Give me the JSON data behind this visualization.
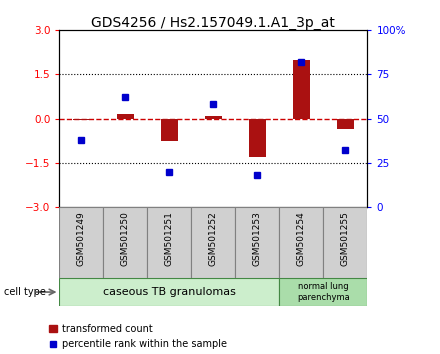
{
  "title": "GDS4256 / Hs2.157049.1.A1_3p_at",
  "samples": [
    "GSM501249",
    "GSM501250",
    "GSM501251",
    "GSM501252",
    "GSM501253",
    "GSM501254",
    "GSM501255"
  ],
  "transformed_count": [
    -0.05,
    0.15,
    -0.75,
    0.08,
    -1.3,
    2.0,
    -0.35
  ],
  "percentile_rank": [
    38,
    62,
    20,
    58,
    18,
    82,
    32
  ],
  "ylim_left": [
    -3,
    3
  ],
  "ylim_right": [
    0,
    100
  ],
  "yticks_left": [
    -3,
    -1.5,
    0,
    1.5,
    3
  ],
  "yticks_right": [
    0,
    25,
    50,
    75,
    100
  ],
  "ytick_right_labels": [
    "0",
    "25",
    "50",
    "75",
    "100%"
  ],
  "bar_color": "#aa1111",
  "dot_color": "#0000cc",
  "zero_line_color": "#cc0000",
  "group1_label": "caseous TB granulomas",
  "group2_label": "normal lung\nparenchyma",
  "group1_color": "#cceecc",
  "group2_color": "#aaddaa",
  "cell_type_label": "cell type",
  "legend_bar_label": "transformed count",
  "legend_dot_label": "percentile rank within the sample",
  "title_fontsize": 10,
  "tick_fontsize": 7.5,
  "sample_fontsize": 6.5,
  "group_fontsize": 8,
  "legend_fontsize": 7,
  "bg_color": "#ffffff",
  "sample_box_color": "#d0d0d0",
  "sample_box_edge": "#808080"
}
